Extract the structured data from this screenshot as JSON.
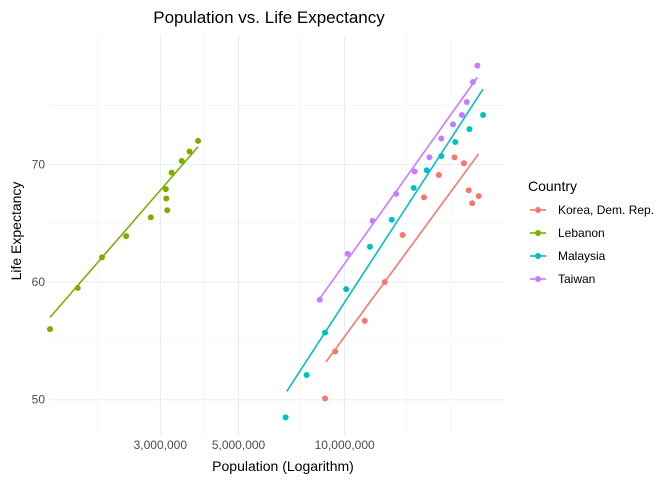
{
  "chart_data": {
    "type": "scatter",
    "title": "Population vs. Life Expectancy",
    "xlabel": "Population (Logarithm)",
    "ylabel": "Life Expectancy",
    "x_scale": "log10",
    "xlim": [
      1450000,
      28500000
    ],
    "ylim": [
      47,
      81
    ],
    "x_ticks": [
      3000000,
      5000000,
      10000000
    ],
    "x_tick_labels": [
      "3,000,000",
      "5,000,000",
      "10,000,000"
    ],
    "x_minor_gridlines": [
      2000000,
      4000000,
      7500000,
      15000000,
      20000000
    ],
    "y_ticks": [
      50,
      60,
      70
    ],
    "y_tick_labels": [
      "50",
      "60",
      "70"
    ],
    "grid": true,
    "legend": {
      "title": "Country",
      "position": "right"
    },
    "series": [
      {
        "name": "Korea, Dem. Rep.",
        "color": "#F8766D",
        "x": [
          8800000,
          9400000,
          11400000,
          13000000,
          14600000,
          16800000,
          18500000,
          20500000,
          21800000,
          22500000,
          23000000,
          24000000
        ],
        "y": [
          50.1,
          54.1,
          56.7,
          60.0,
          64.0,
          67.2,
          69.1,
          70.6,
          70.1,
          67.8,
          66.7,
          67.3
        ],
        "fit": {
          "x": [
            8850000,
            24000000
          ],
          "y": [
            53.2,
            70.9
          ]
        }
      },
      {
        "name": "Lebanon",
        "color": "#7CAE00",
        "x": [
          1460000,
          1750000,
          2050000,
          2400000,
          2820000,
          3110000,
          3120000,
          3140000,
          3230000,
          3450000,
          3630000,
          3840000
        ],
        "y": [
          56.0,
          59.5,
          62.1,
          63.9,
          65.5,
          67.9,
          67.1,
          66.1,
          69.3,
          70.3,
          71.1,
          72.0
        ],
        "fit": {
          "x": [
            1460000,
            3840000
          ],
          "y": [
            57.0,
            71.5
          ]
        }
      },
      {
        "name": "Malaysia",
        "color": "#00BFC4",
        "x": [
          6800000,
          7800000,
          8800000,
          10100000,
          11800000,
          13600000,
          15700000,
          17100000,
          18800000,
          20600000,
          22600000,
          24700000
        ],
        "y": [
          48.5,
          52.1,
          55.7,
          59.4,
          63.0,
          65.3,
          68.0,
          69.5,
          70.7,
          71.9,
          73.0,
          74.2
        ],
        "fit": {
          "x": [
            6850000,
            24700000
          ],
          "y": [
            50.7,
            76.4
          ]
        }
      },
      {
        "name": "Taiwan",
        "color": "#C77CFF",
        "x": [
          8500000,
          10200000,
          12000000,
          14000000,
          15800000,
          17400000,
          18800000,
          20300000,
          21500000,
          22200000,
          23100000,
          23800000
        ],
        "y": [
          58.5,
          62.4,
          65.2,
          67.5,
          69.4,
          70.6,
          72.2,
          73.4,
          74.2,
          75.3,
          77.0,
          78.4
        ],
        "fit": {
          "x": [
            8500000,
            23800000
          ],
          "y": [
            58.6,
            77.4
          ]
        }
      }
    ]
  }
}
